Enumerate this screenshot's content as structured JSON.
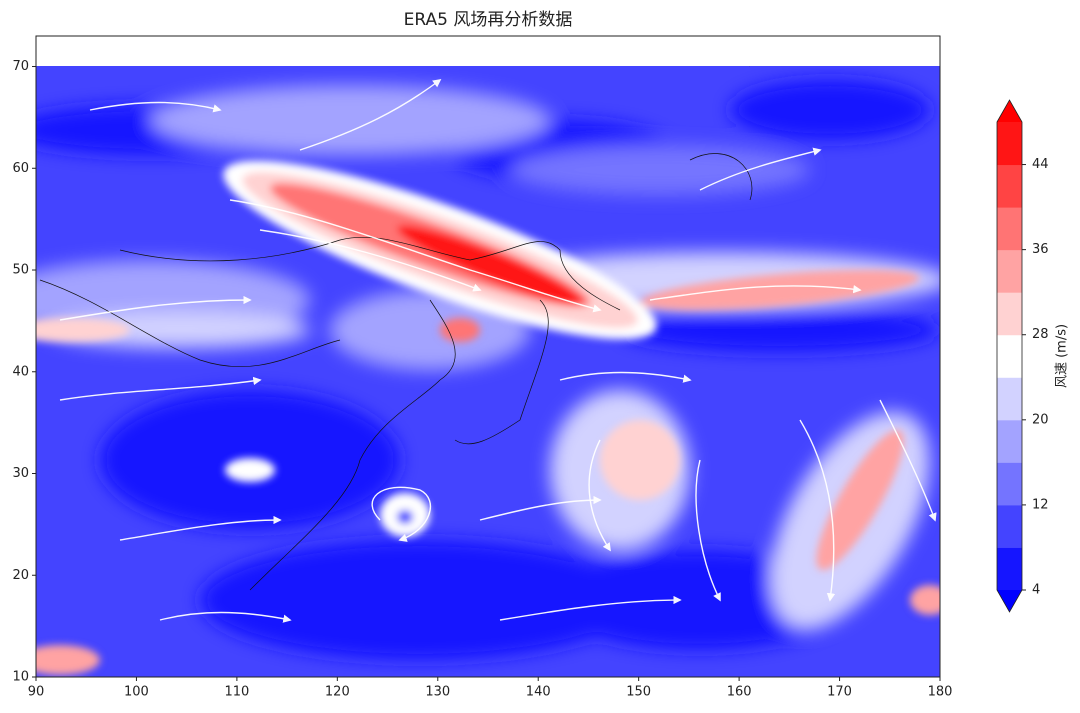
{
  "chart_data": {
    "type": "contourf",
    "title": "ERA5 风场再分析数据",
    "xlim": [
      90,
      180
    ],
    "ylim": [
      10,
      73
    ],
    "xticks": [
      90,
      100,
      110,
      120,
      130,
      140,
      150,
      160,
      170,
      180
    ],
    "yticks": [
      10,
      20,
      30,
      40,
      50,
      60,
      70
    ],
    "colorbar": {
      "label": "风速 (m/s)",
      "lim": [
        4,
        48
      ],
      "ticks": [
        4,
        12,
        20,
        28,
        36,
        44
      ],
      "levels": [
        4,
        8,
        12,
        16,
        20,
        24,
        28,
        32,
        36,
        40,
        44,
        48
      ],
      "colors": [
        "#1515ff",
        "#4444ff",
        "#7474ff",
        "#a3a3ff",
        "#d2d2ff",
        "#ffffff",
        "#ffd2d2",
        "#ffa3a3",
        "#ff7474",
        "#ff4444",
        "#ff1515"
      ],
      "extend": "both",
      "under_color": "#0000ff",
      "over_color": "#ff0000"
    }
  }
}
